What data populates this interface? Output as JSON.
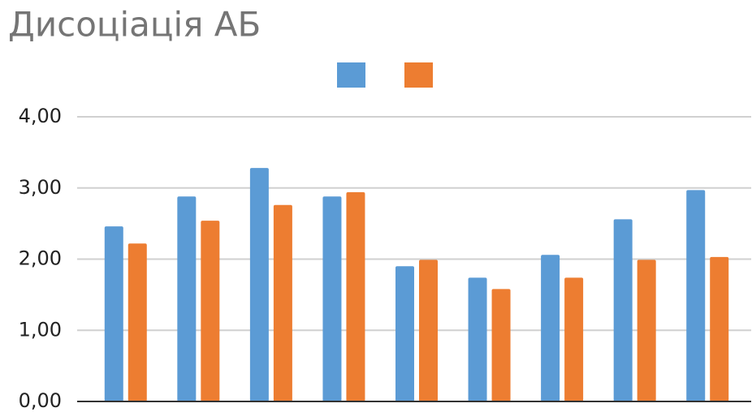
{
  "chart_data": {
    "type": "bar",
    "title": "Дисоціація АБ",
    "categories": [
      null,
      null,
      null,
      null,
      null,
      null,
      null,
      null,
      null
    ],
    "series": [
      {
        "color": "#5b9bd5",
        "values": [
          2.46,
          2.88,
          3.28,
          2.88,
          1.9,
          1.74,
          2.06,
          2.56,
          2.97
        ]
      },
      {
        "color": "#ed7d31",
        "values": [
          2.22,
          2.54,
          2.76,
          2.94,
          1.99,
          1.58,
          1.74,
          1.99,
          2.03
        ]
      }
    ],
    "ylim": [
      0,
      4
    ],
    "yticks": [
      {
        "value": 0,
        "label": "0,00"
      },
      {
        "value": 1,
        "label": "1,00"
      },
      {
        "value": 2,
        "label": "2,00"
      },
      {
        "value": 3,
        "label": "3,00"
      },
      {
        "value": 4,
        "label": "4,00"
      }
    ],
    "grid": true,
    "legend": "top"
  }
}
